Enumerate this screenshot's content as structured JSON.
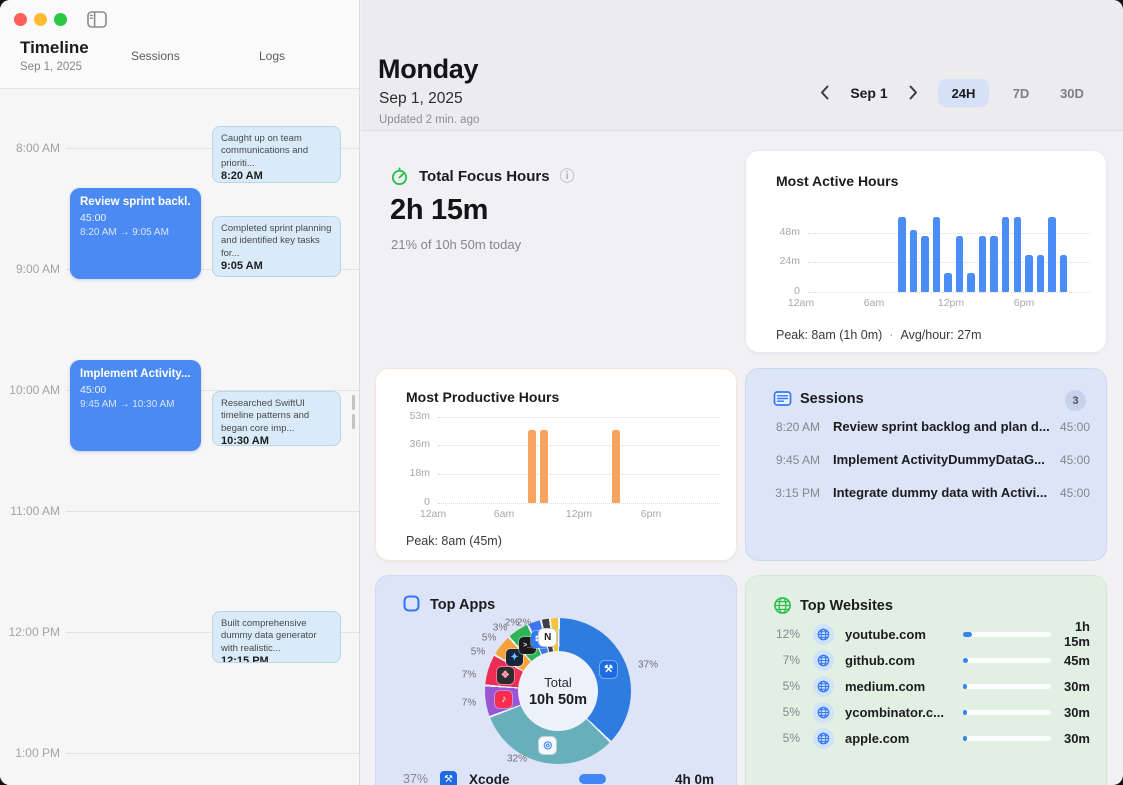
{
  "sidebar": {
    "title": "Timeline",
    "date": "Sep 1, 2025",
    "tabs": [
      "Sessions",
      "Logs"
    ],
    "hours": [
      "8:00 AM",
      "9:00 AM",
      "10:00 AM",
      "11:00 AM",
      "12:00 PM",
      "1:00 PM"
    ],
    "sessions": [
      {
        "title": "Review sprint backl...",
        "duration": "45:00",
        "range": "8:20 AM → 9:05 AM"
      },
      {
        "title": "Implement Activity...",
        "duration": "45:00",
        "range": "9:45 AM → 10:30 AM"
      }
    ],
    "logs": [
      {
        "text": "Caught up on team communications and prioriti...",
        "time": "8:20 AM"
      },
      {
        "text": "Completed sprint planning and identified key tasks for...",
        "time": "9:05 AM"
      },
      {
        "text": "Researched SwiftUI timeline patterns and began core imp...",
        "time": "10:30 AM"
      },
      {
        "text": "Built comprehensive dummy data generator with realistic...",
        "time": "12:15 PM"
      }
    ]
  },
  "header": {
    "title": "Monday",
    "date": "Sep 1, 2025",
    "updated": "Updated 2 min. ago",
    "nav_date": "Sep 1",
    "range_options": [
      "24H",
      "7D",
      "30D"
    ],
    "selected_range": "24H"
  },
  "focus": {
    "title": "Total Focus Hours",
    "info_icon": "ⓘ",
    "value": "2h 15m",
    "subtitle": "21% of 10h 50m today"
  },
  "active_hours": {
    "title": "Most Active Hours",
    "footer_peak": "Peak: 8am (1h 0m)",
    "footer_sep": "·",
    "footer_avg": "Avg/hour: 27m",
    "chart_data": {
      "type": "bar",
      "unit": "minutes",
      "color": "#4b8df7",
      "x": [
        "8am",
        "9am",
        "10am",
        "11am",
        "12pm",
        "1pm",
        "2pm",
        "3pm",
        "4pm",
        "5pm",
        "6pm",
        "7pm",
        "8pm",
        "9pm",
        "10pm"
      ],
      "values": [
        60,
        50,
        45,
        60,
        15,
        45,
        15,
        45,
        45,
        60,
        60,
        30,
        30,
        60,
        30
      ],
      "ymax": 60,
      "yticks": [
        "48m",
        "24m",
        "0"
      ],
      "xticks": [
        "12am",
        "6am",
        "12pm",
        "6pm"
      ],
      "grid": "dotted"
    }
  },
  "productive_hours": {
    "title": "Most Productive Hours",
    "footer_peak": "Peak: 8am (45m)",
    "chart_data": {
      "type": "bar",
      "unit": "minutes",
      "color": "#f9a360",
      "x": [
        "8am",
        "9am",
        "3pm"
      ],
      "values": [
        45,
        45,
        45
      ],
      "ymax": 53,
      "yticks": [
        "53m",
        "36m",
        "18m",
        "0"
      ],
      "xticks": [
        "12am",
        "6am",
        "12pm",
        "6pm"
      ],
      "grid": "dotted"
    }
  },
  "sessions_card": {
    "title": "Sessions",
    "badge": "3",
    "rows": [
      {
        "time": "8:20 AM",
        "title": "Review sprint backlog and plan d...",
        "duration": "45:00"
      },
      {
        "time": "9:45 AM",
        "title": "Implement ActivityDummyDataG...",
        "duration": "45:00"
      },
      {
        "time": "3:15 PM",
        "title": "Integrate dummy data with Activi...",
        "duration": "45:00"
      }
    ]
  },
  "top_apps": {
    "title": "Top Apps",
    "center_label": "Total",
    "center_value": "10h 50m",
    "chart_data": {
      "type": "pie",
      "total": "10h 50m",
      "slices": [
        {
          "label": "37%",
          "pct": 37,
          "color": "#2e7ce0",
          "app": "xcode",
          "glyph": "⚒",
          "chip_bg": "#1d6ae5",
          "glyph_color": "#ffffff"
        },
        {
          "label": "32%",
          "pct": 32,
          "color": "#68afbc",
          "app": "safari",
          "glyph": "◎",
          "chip_bg": "#f4f8ff",
          "glyph_color": "#2f7cf6"
        },
        {
          "label": "7%",
          "pct": 7,
          "color": "#9b55d4",
          "app": "music",
          "glyph": "♪",
          "chip_bg": "#fb2d4e",
          "glyph_color": "#ffffff"
        },
        {
          "label": "7%",
          "pct": 7,
          "color": "#ee2d55",
          "app": "photos",
          "glyph": "❖",
          "chip_bg": "#2b2b30",
          "glyph_color": "#ff9fb1"
        },
        {
          "label": "5%",
          "pct": 5,
          "color": "#f6a23c",
          "app": "pixelmator",
          "glyph": "✦",
          "chip_bg": "#16263f",
          "glyph_color": "#6cc9ff"
        },
        {
          "label": "5%",
          "pct": 5,
          "color": "#2eb457",
          "app": "terminal",
          "glyph": ">_",
          "chip_bg": "#1c1c1e",
          "glyph_color": "#f2f2f2"
        },
        {
          "label": "3%",
          "pct": 3,
          "color": "#3e76f0",
          "app": "mail",
          "glyph": "✉",
          "chip_bg": "#2f7cf6",
          "glyph_color": "#ffffff"
        },
        {
          "label": "2%",
          "pct": 2,
          "color": "#3f3f44",
          "app": "notion",
          "glyph": "N",
          "chip_bg": "#ffffff",
          "glyph_color": "#1c1c1e"
        },
        {
          "label": "2%",
          "pct": 2,
          "color": "#f2c53d",
          "app": "",
          "glyph": "",
          "chip_bg": "",
          "glyph_color": ""
        }
      ]
    },
    "legend": [
      {
        "pct": "37%",
        "name": "Xcode",
        "value": "4h 0m"
      }
    ]
  },
  "top_websites": {
    "title": "Top Websites",
    "rows": [
      {
        "pct": "12%",
        "pct_num": 12,
        "domain": "youtube.com",
        "value": "1h 15m"
      },
      {
        "pct": "7%",
        "pct_num": 7,
        "domain": "github.com",
        "value": "45m"
      },
      {
        "pct": "5%",
        "pct_num": 5,
        "domain": "medium.com",
        "value": "30m"
      },
      {
        "pct": "5%",
        "pct_num": 5,
        "domain": "ycombinator.c...",
        "value": "30m"
      },
      {
        "pct": "5%",
        "pct_num": 5,
        "domain": "apple.com",
        "value": "30m"
      }
    ]
  }
}
